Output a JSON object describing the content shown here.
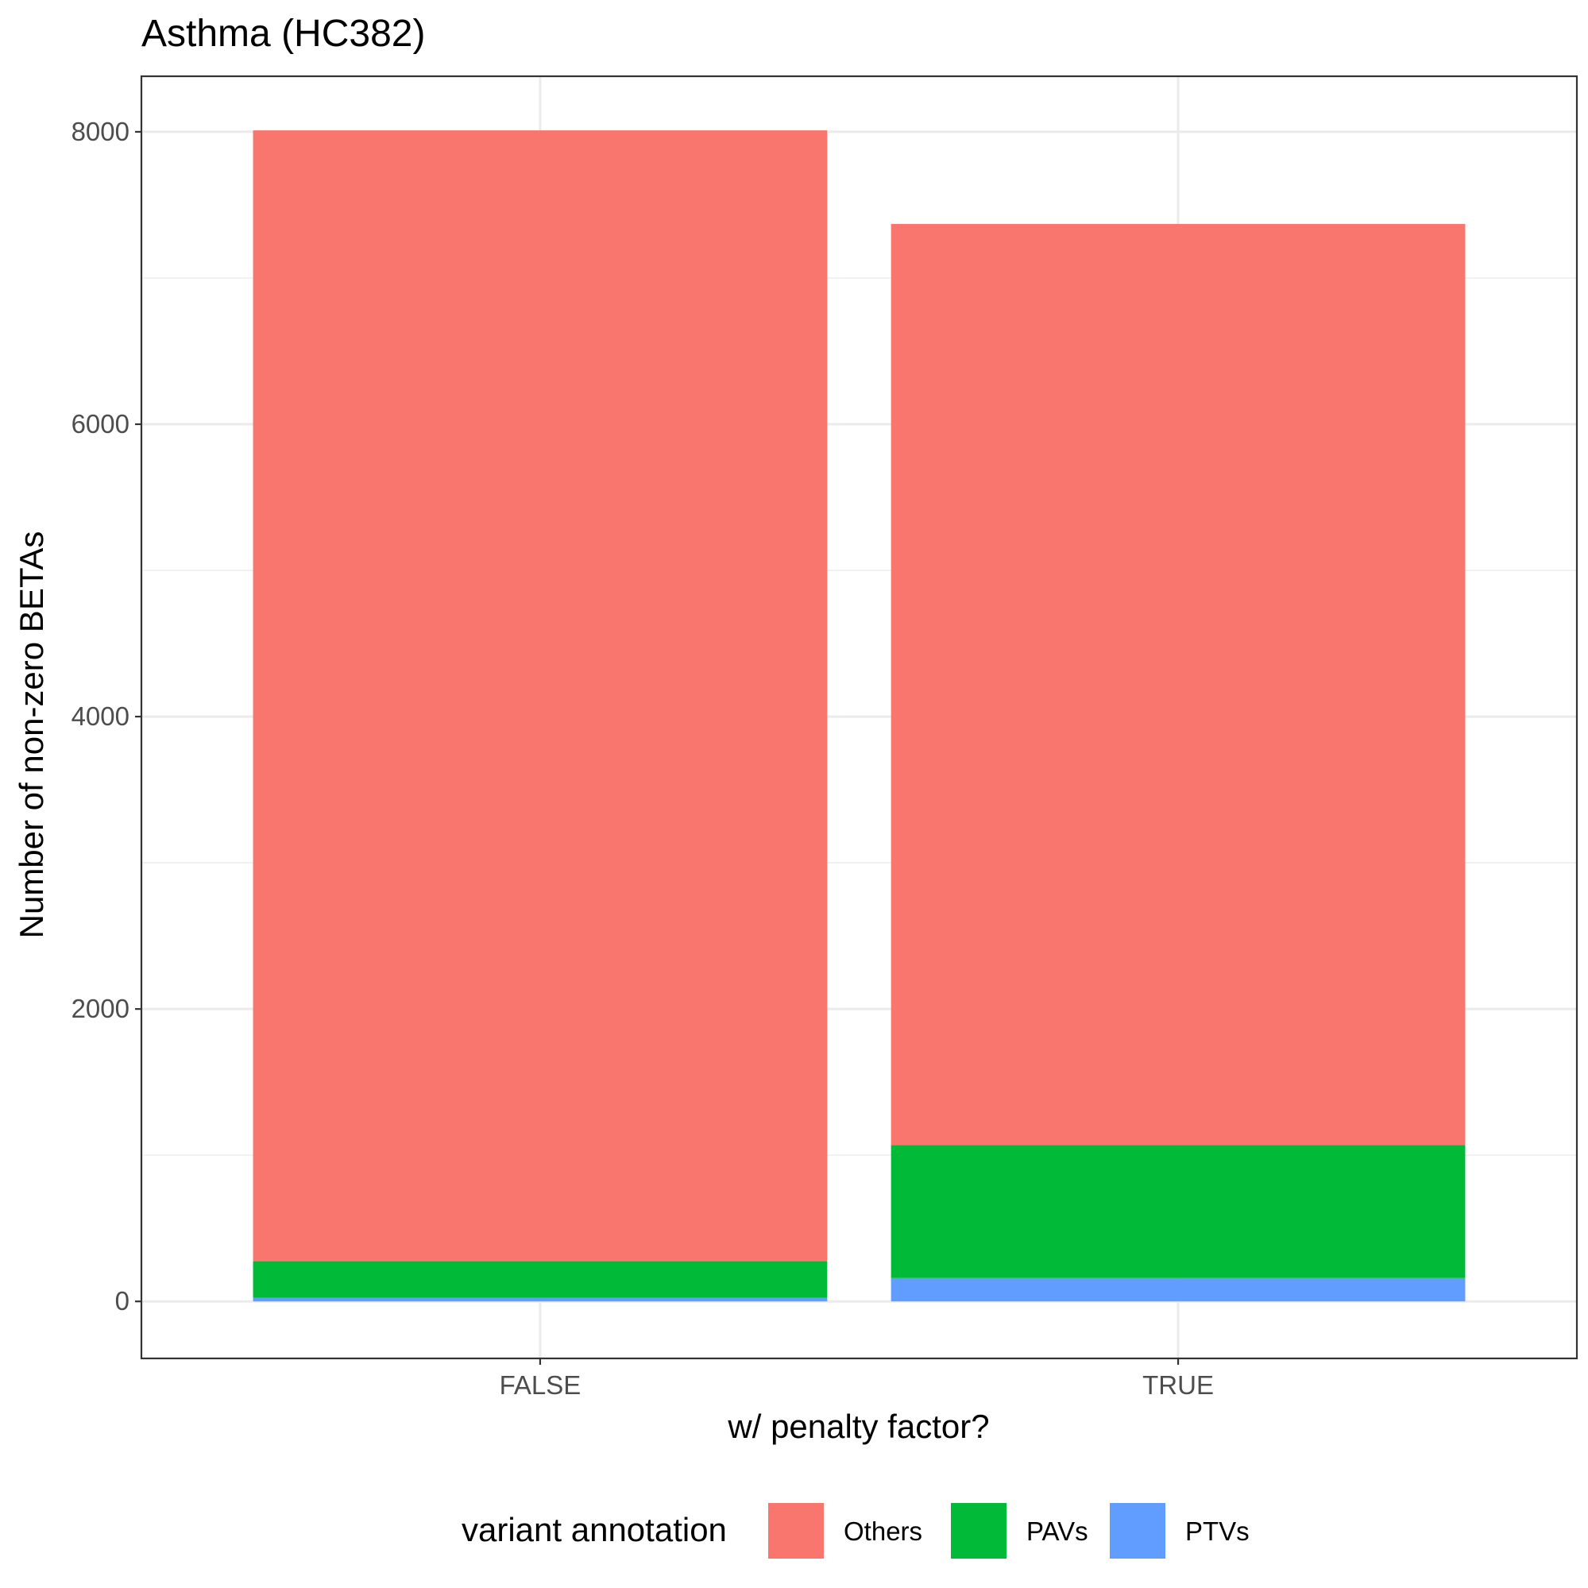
{
  "chart_data": {
    "type": "bar",
    "stacked": true,
    "title": "Asthma (HC382)",
    "xlabel": "w/ penalty factor?",
    "ylabel": "Number of non-zero BETAs",
    "categories": [
      "FALSE",
      "TRUE"
    ],
    "ylim": [
      -390,
      8380
    ],
    "yticks": [
      0,
      2000,
      4000,
      6000,
      8000
    ],
    "y_minor_ticks": [
      1000,
      3000,
      5000,
      7000
    ],
    "grid": true,
    "legend_title": "variant annotation",
    "legend_position": "bottom",
    "series": [
      {
        "name": "PTVs",
        "color": "#619CFF",
        "values": [
          25,
          160
        ]
      },
      {
        "name": "PAVs",
        "color": "#00BA38",
        "values": [
          250,
          910
        ]
      },
      {
        "name": "Others",
        "color": "#F8766D",
        "values": [
          7735,
          6300
        ]
      }
    ],
    "legend_order": [
      "Others",
      "PAVs",
      "PTVs"
    ]
  }
}
